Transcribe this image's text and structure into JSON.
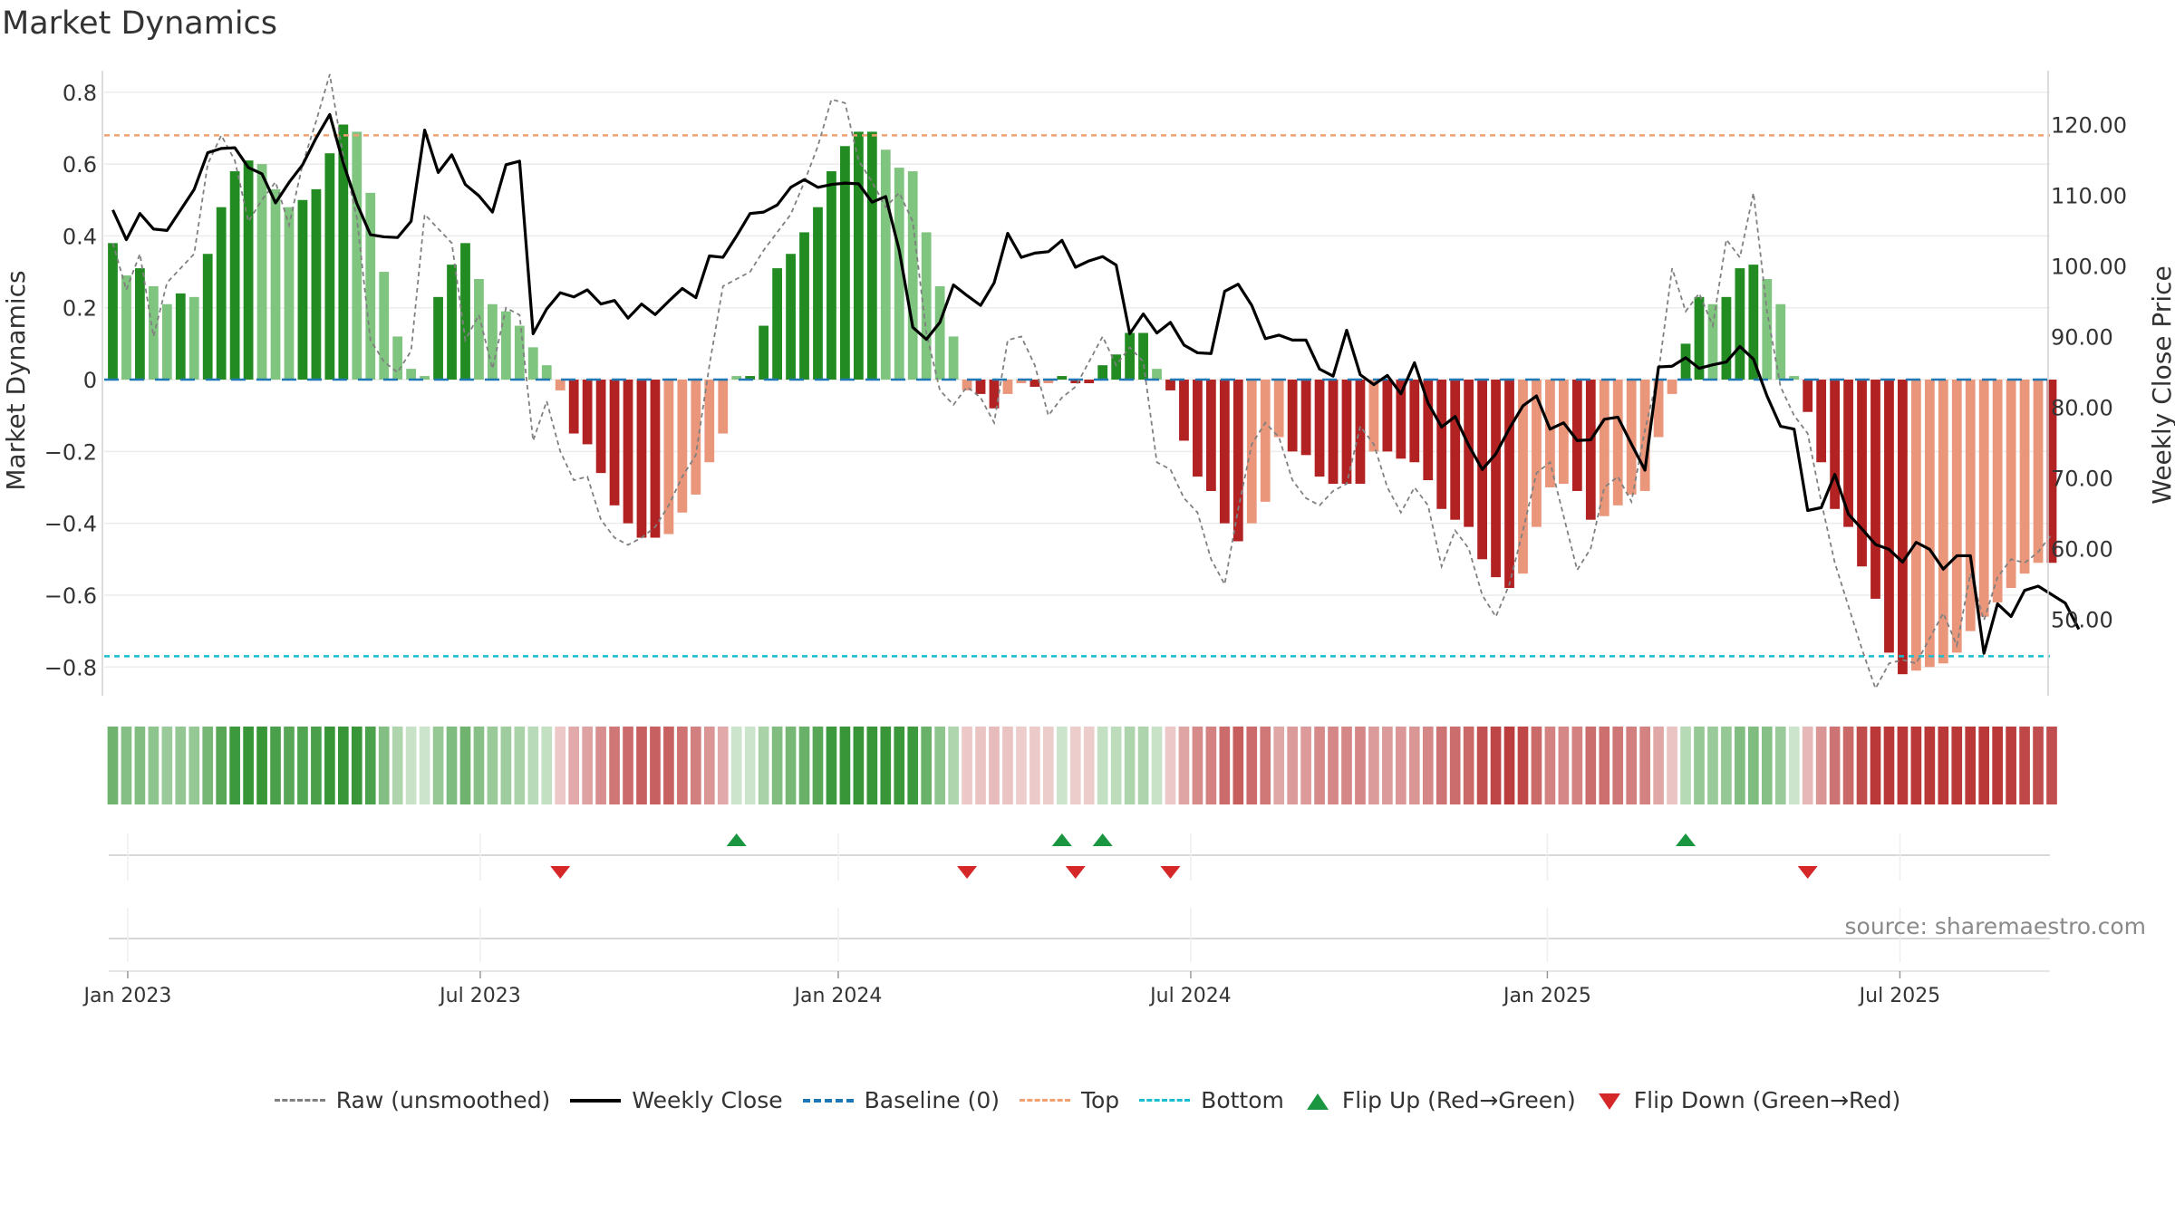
{
  "title": "Market Dynamics",
  "source_note": "source: sharemaestro.com",
  "legend": {
    "raw": "Raw (unsmoothed)",
    "close": "Weekly Close",
    "baseline": "Baseline (0)",
    "top": "Top",
    "bottom": "Bottom",
    "flip_up": "Flip Up (Red→Green)",
    "flip_down": "Flip Down (Green→Red)"
  },
  "colors": {
    "bar_green_dark": "#228b22",
    "bar_green_light": "#7fc47f",
    "bar_red_dark": "#b22222",
    "bar_red_light": "#e9967a",
    "close_line": "#000000",
    "raw_line": "#808080",
    "baseline": "#1f77b4",
    "top": "#f0a070",
    "bottom": "#17becf",
    "flip_up": "#1a9641",
    "flip_down": "#d62728"
  },
  "chart_data": {
    "type": "bar",
    "ylabel": "Market Dynamics",
    "y2label": "Weekly Close Price",
    "ylim": [
      -0.88,
      0.86
    ],
    "y2lim": [
      39.2,
      127.6
    ],
    "yticks": [
      "0.8",
      "0.6",
      "0.4",
      "0.2",
      "0",
      "−0.2",
      "−0.4",
      "−0.6",
      "−0.8"
    ],
    "y2ticks": [
      "120.00",
      "110.00",
      "100.00",
      "90.00",
      "80.00",
      "70.00",
      "60.00",
      "50.00"
    ],
    "x_ticks": [
      {
        "label": "Jan 2023",
        "week": 1.6
      },
      {
        "label": "Jul 2023",
        "week": 27.6
      },
      {
        "label": "Jan 2024",
        "week": 54.0
      },
      {
        "label": "Jul 2024",
        "week": 80.0
      },
      {
        "label": "Jan 2025",
        "week": 106.3
      },
      {
        "label": "Jul 2025",
        "week": 132.3
      }
    ],
    "top_level": 0.68,
    "bottom_level": -0.77,
    "baseline": 0,
    "grid": true,
    "legend_position": "bottom",
    "x_start": "2022-12-26",
    "x_interval": "weekly",
    "smoothed": [
      0.38,
      0.29,
      0.31,
      0.26,
      0.21,
      0.24,
      0.23,
      0.35,
      0.48,
      0.58,
      0.61,
      0.6,
      0.53,
      0.48,
      0.5,
      0.53,
      0.63,
      0.71,
      0.69,
      0.52,
      0.3,
      0.12,
      0.03,
      0.01,
      0.23,
      0.32,
      0.38,
      0.28,
      0.21,
      0.19,
      0.15,
      0.09,
      0.04,
      -0.03,
      -0.15,
      -0.18,
      -0.26,
      -0.35,
      -0.4,
      -0.44,
      -0.44,
      -0.43,
      -0.37,
      -0.32,
      -0.23,
      -0.15,
      0.01,
      0.01,
      0.15,
      0.31,
      0.35,
      0.41,
      0.48,
      0.58,
      0.65,
      0.69,
      0.69,
      0.64,
      0.59,
      0.58,
      0.41,
      0.26,
      0.12,
      -0.03,
      -0.04,
      -0.08,
      -0.04,
      -0.01,
      -0.02,
      -0.01,
      0.01,
      -0.01,
      -0.01,
      0.04,
      0.07,
      0.13,
      0.13,
      0.03,
      -0.03,
      -0.17,
      -0.27,
      -0.31,
      -0.4,
      -0.45,
      -0.4,
      -0.34,
      -0.16,
      -0.2,
      -0.21,
      -0.27,
      -0.29,
      -0.29,
      -0.29,
      -0.2,
      -0.2,
      -0.22,
      -0.23,
      -0.28,
      -0.36,
      -0.39,
      -0.41,
      -0.5,
      -0.55,
      -0.58,
      -0.54,
      -0.41,
      -0.3,
      -0.29,
      -0.31,
      -0.39,
      -0.38,
      -0.35,
      -0.32,
      -0.31,
      -0.16,
      -0.04,
      0.1,
      0.23,
      0.21,
      0.23,
      0.31,
      0.32,
      0.28,
      0.21,
      0.01,
      -0.09,
      -0.23,
      -0.36,
      -0.41,
      -0.52,
      -0.61,
      -0.76,
      -0.82,
      -0.81,
      -0.8,
      -0.79,
      -0.76,
      -0.7,
      -0.66,
      -0.62,
      -0.58,
      -0.54,
      -0.51,
      -0.51
    ],
    "raw": [
      0.38,
      0.25,
      0.35,
      0.12,
      0.27,
      0.31,
      0.35,
      0.6,
      0.68,
      0.61,
      0.44,
      0.5,
      0.55,
      0.43,
      0.6,
      0.72,
      0.85,
      0.62,
      0.45,
      0.11,
      0.05,
      0.02,
      0.08,
      0.46,
      0.42,
      0.38,
      0.11,
      0.18,
      0.03,
      0.2,
      0.18,
      -0.17,
      -0.06,
      -0.2,
      -0.28,
      -0.27,
      -0.39,
      -0.44,
      -0.46,
      -0.44,
      -0.41,
      -0.35,
      -0.27,
      -0.21,
      0.04,
      0.26,
      0.28,
      0.3,
      0.36,
      0.41,
      0.46,
      0.55,
      0.65,
      0.78,
      0.77,
      0.61,
      0.55,
      0.48,
      0.52,
      0.44,
      0.13,
      -0.03,
      -0.07,
      -0.02,
      -0.05,
      -0.12,
      0.11,
      0.12,
      0.04,
      -0.1,
      -0.05,
      -0.02,
      0.05,
      0.12,
      0.04,
      0.09,
      0.05,
      -0.23,
      -0.25,
      -0.33,
      -0.37,
      -0.5,
      -0.57,
      -0.36,
      -0.18,
      -0.12,
      -0.16,
      -0.28,
      -0.33,
      -0.35,
      -0.31,
      -0.29,
      -0.13,
      -0.18,
      -0.3,
      -0.37,
      -0.3,
      -0.35,
      -0.52,
      -0.42,
      -0.47,
      -0.6,
      -0.66,
      -0.57,
      -0.42,
      -0.26,
      -0.23,
      -0.38,
      -0.53,
      -0.47,
      -0.3,
      -0.27,
      -0.34,
      -0.14,
      0.02,
      0.31,
      0.19,
      0.24,
      0.15,
      0.39,
      0.34,
      0.52,
      0.19,
      -0.02,
      -0.1,
      -0.15,
      -0.34,
      -0.51,
      -0.63,
      -0.75,
      -0.86,
      -0.79,
      -0.78,
      -0.79,
      -0.72,
      -0.65,
      -0.74,
      -0.54,
      -0.67,
      -0.55,
      -0.5,
      -0.51,
      -0.48,
      -0.43
    ],
    "close": [
      107.9,
      103.7,
      107.4,
      105.2,
      105.0,
      107.9,
      110.8,
      116.0,
      116.6,
      116.7,
      113.9,
      113.0,
      108.9,
      111.8,
      114.3,
      118.1,
      121.4,
      114.5,
      108.8,
      104.4,
      104.1,
      104.0,
      106.3,
      119.2,
      113.2,
      115.7,
      111.5,
      109.9,
      107.6,
      114.3,
      114.8,
      90.4,
      93.9,
      96.2,
      95.6,
      96.6,
      94.6,
      95.1,
      92.6,
      94.6,
      93.1,
      95.0,
      96.8,
      95.5,
      101.4,
      101.2,
      104.2,
      107.4,
      107.6,
      108.6,
      111.1,
      112.2,
      111.1,
      111.5,
      111.7,
      111.6,
      109.0,
      109.8,
      102.2,
      91.3,
      89.6,
      92.0,
      97.3,
      95.8,
      94.4,
      97.6,
      104.6,
      101.2,
      101.8,
      102.0,
      103.6,
      99.8,
      100.7,
      101.3,
      100.1,
      90.4,
      93.2,
      90.5,
      92.0,
      88.8,
      87.7,
      87.6,
      96.4,
      97.4,
      94.4,
      89.7,
      90.2,
      89.5,
      89.5,
      85.4,
      84.4,
      90.9,
      84.6,
      83.2,
      84.5,
      81.9,
      86.3,
      80.6,
      77.2,
      78.7,
      74.6,
      71.2,
      73.4,
      77.0,
      80.2,
      81.6,
      76.9,
      77.8,
      75.3,
      75.4,
      78.3,
      78.6,
      74.8,
      71.1,
      85.7,
      85.8,
      87.0,
      85.5,
      86.0,
      86.4,
      88.6,
      86.8,
      81.6,
      77.3,
      76.9,
      65.4,
      65.8,
      70.5,
      64.9,
      62.8,
      60.6,
      59.9,
      58.1,
      60.9,
      59.9,
      57.1,
      59.0,
      59.0,
      45.2,
      52.2,
      50.4,
      54.1,
      54.7,
      53.5,
      52.3,
      48.6
    ]
  }
}
